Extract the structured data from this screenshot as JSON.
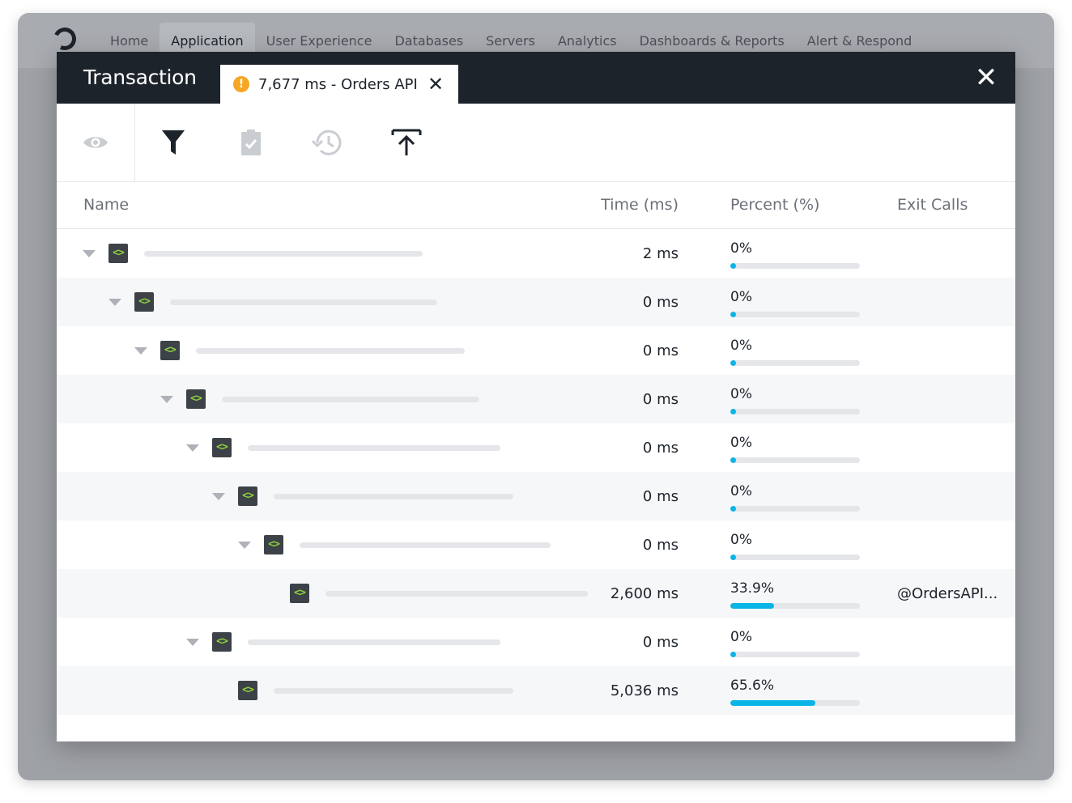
{
  "nav": {
    "items": [
      "Home",
      "Application",
      "User Experience",
      "Databases",
      "Servers",
      "Analytics",
      "Dashboards & Reports",
      "Alert & Respond"
    ],
    "active_index": 1
  },
  "modal": {
    "title": "Transaction",
    "tab_label": "7,677 ms - Orders API",
    "tab_close": "✕",
    "close": "✕"
  },
  "toolbar": {
    "icons": [
      "eye-icon",
      "filter-icon",
      "clipboard-check-icon",
      "history-icon",
      "upload-icon"
    ]
  },
  "table": {
    "columns": {
      "name": "Name",
      "time": "Time (ms)",
      "percent": "Percent (%)",
      "exit": "Exit Calls"
    },
    "rows": [
      {
        "depth": 0,
        "expandable": true,
        "time": "2 ms",
        "percent": "0%",
        "fraction": 0,
        "exit": ""
      },
      {
        "depth": 1,
        "expandable": true,
        "time": "0 ms",
        "percent": "0%",
        "fraction": 0,
        "exit": ""
      },
      {
        "depth": 2,
        "expandable": true,
        "time": "0 ms",
        "percent": "0%",
        "fraction": 0,
        "exit": ""
      },
      {
        "depth": 3,
        "expandable": true,
        "time": "0 ms",
        "percent": "0%",
        "fraction": 0,
        "exit": ""
      },
      {
        "depth": 4,
        "expandable": true,
        "time": "0 ms",
        "percent": "0%",
        "fraction": 0,
        "exit": ""
      },
      {
        "depth": 5,
        "expandable": true,
        "time": "0 ms",
        "percent": "0%",
        "fraction": 0,
        "exit": ""
      },
      {
        "depth": 6,
        "expandable": true,
        "time": "0 ms",
        "percent": "0%",
        "fraction": 0,
        "exit": ""
      },
      {
        "depth": 7,
        "expandable": false,
        "time": "2,600 ms",
        "percent": "33.9%",
        "fraction": 0.339,
        "exit": "@OrdersAPI..."
      },
      {
        "depth": 4,
        "expandable": true,
        "time": "0 ms",
        "percent": "0%",
        "fraction": 0,
        "exit": ""
      },
      {
        "depth": 5,
        "expandable": false,
        "time": "5,036 ms",
        "percent": "65.6%",
        "fraction": 0.656,
        "exit": ""
      }
    ]
  },
  "colors": {
    "header": "#1d232b",
    "accent": "#0ab4e6",
    "warning": "#f5a623",
    "code_icon": "#8ed13a"
  }
}
